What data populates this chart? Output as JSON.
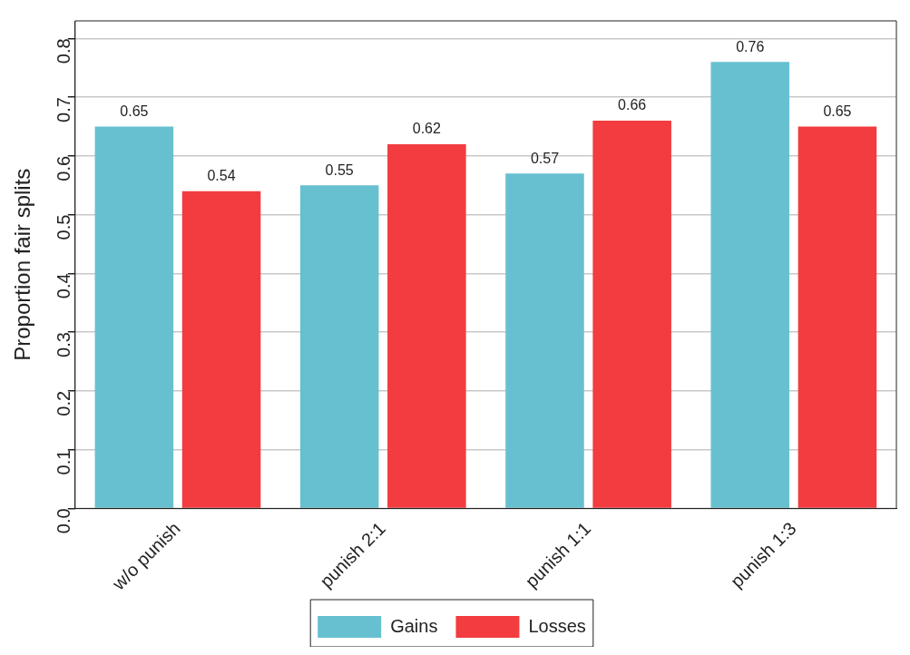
{
  "chart_data": {
    "type": "bar",
    "ylabel": "Proportion fair splits",
    "categories": [
      "w/o punish",
      "punish 2:1",
      "punish 1:1",
      "punish 1:3"
    ],
    "series": [
      {
        "name": "Gains",
        "color": "#67c0d0",
        "values": [
          0.65,
          0.55,
          0.57,
          0.76
        ]
      },
      {
        "name": "Losses",
        "color": "#f23c3f",
        "values": [
          0.54,
          0.62,
          0.66,
          0.65
        ]
      }
    ],
    "ylim": [
      0,
      0.83
    ],
    "yticks": [
      "0.0",
      "0.1",
      "0.2",
      "0.3",
      "0.4",
      "0.5",
      "0.6",
      "0.7",
      "0.8"
    ],
    "grid": "y",
    "legend": "bottom",
    "data_labels": true
  }
}
